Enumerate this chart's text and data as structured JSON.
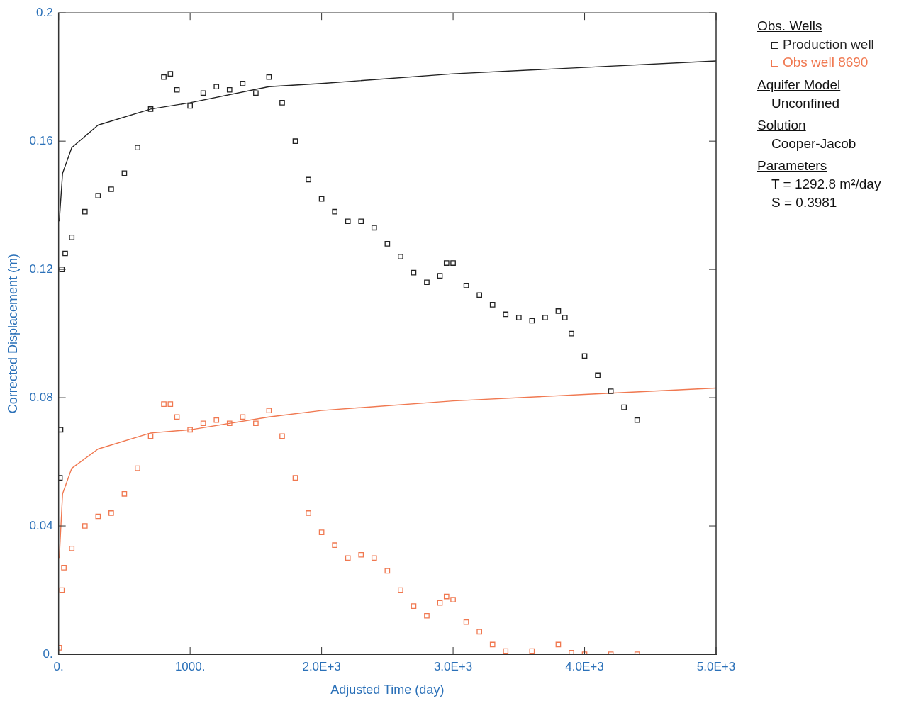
{
  "chart_data": {
    "type": "scatter",
    "xlabel": "Adjusted Time (day)",
    "ylabel": "Corrected Displacement (m)",
    "legend_title": "Obs. Wells",
    "legend": "right",
    "marker": "square",
    "grid": false,
    "xlim": [
      0,
      5000
    ],
    "xticks": [
      {
        "value": 0,
        "label": "0."
      },
      {
        "value": 1000,
        "label": "1000."
      },
      {
        "value": 2000,
        "label": "2.0E+3"
      },
      {
        "value": 3000,
        "label": "3.0E+3"
      },
      {
        "value": 4000,
        "label": "4.0E+3"
      },
      {
        "value": 5000,
        "label": "5.0E+3"
      }
    ],
    "ylim": [
      0,
      0.2
    ],
    "yticks": [
      {
        "value": 0,
        "label": "0."
      },
      0.04,
      0.08,
      0.12,
      0.16,
      0.2
    ],
    "annotations": [
      "Aquifer Model",
      "Unconfined",
      "Solution",
      "Cooper-Jacob",
      "Parameters",
      "T = 1292.8 m²/day",
      "S = 0.3981"
    ],
    "series": [
      {
        "name": "Production well",
        "color": "#222222",
        "x": [
          10,
          15,
          25,
          50,
          100,
          200,
          300,
          400,
          500,
          600,
          700,
          800,
          850,
          900,
          1000,
          1100,
          1200,
          1300,
          1400,
          1500,
          1600,
          1700,
          1800,
          1900,
          2000,
          2100,
          2200,
          2300,
          2400,
          2500,
          2600,
          2700,
          2800,
          2900,
          2950,
          3000,
          3100,
          3200,
          3300,
          3400,
          3500,
          3600,
          3700,
          3800,
          3850,
          3900,
          4000,
          4100,
          4200,
          4300,
          4400
        ],
        "values": [
          0.055,
          0.07,
          0.12,
          0.125,
          0.13,
          0.138,
          0.143,
          0.145,
          0.15,
          0.158,
          0.17,
          0.18,
          0.181,
          0.176,
          0.171,
          0.175,
          0.177,
          0.176,
          0.178,
          0.175,
          0.18,
          0.172,
          0.16,
          0.148,
          0.142,
          0.138,
          0.135,
          0.135,
          0.133,
          0.128,
          0.124,
          0.119,
          0.116,
          0.118,
          0.122,
          0.122,
          0.115,
          0.112,
          0.109,
          0.106,
          0.105,
          0.104,
          0.105,
          0.107,
          0.105,
          0.1,
          0.093,
          0.087,
          0.082,
          0.077,
          0.073
        ]
      },
      {
        "name": "Obs well 8690",
        "color": "#f07850",
        "x": [
          5,
          25,
          40,
          100,
          200,
          300,
          400,
          500,
          600,
          700,
          800,
          850,
          900,
          1000,
          1100,
          1200,
          1300,
          1400,
          1500,
          1600,
          1700,
          1800,
          1900,
          2000,
          2100,
          2200,
          2300,
          2400,
          2500,
          2600,
          2700,
          2800,
          2900,
          2950,
          3000,
          3100,
          3200,
          3300,
          3400,
          3600,
          3800,
          3900,
          4000,
          4200,
          4400
        ],
        "values": [
          0.002,
          0.02,
          0.027,
          0.033,
          0.04,
          0.043,
          0.044,
          0.05,
          0.058,
          0.068,
          0.078,
          0.078,
          0.074,
          0.07,
          0.072,
          0.073,
          0.072,
          0.074,
          0.072,
          0.076,
          0.068,
          0.055,
          0.044,
          0.038,
          0.034,
          0.03,
          0.031,
          0.03,
          0.026,
          0.02,
          0.015,
          0.012,
          0.016,
          0.018,
          0.017,
          0.01,
          0.007,
          0.003,
          0.001,
          0.001,
          0.003,
          0.0005,
          0,
          0,
          0
        ]
      },
      {
        "type": "line",
        "marker": "none",
        "color": "#222222",
        "x": [
          5,
          30,
          100,
          300,
          700,
          1000,
          1600,
          2000,
          3000,
          4000,
          5000
        ],
        "values": [
          0.135,
          0.15,
          0.158,
          0.165,
          0.17,
          0.172,
          0.177,
          0.178,
          0.181,
          0.183,
          0.185
        ]
      },
      {
        "type": "line",
        "marker": "none",
        "color": "#f07850",
        "x": [
          5,
          30,
          100,
          300,
          700,
          1000,
          1600,
          2000,
          3000,
          4000,
          5000
        ],
        "values": [
          0.03,
          0.05,
          0.058,
          0.064,
          0.069,
          0.07,
          0.074,
          0.076,
          0.079,
          0.081,
          0.083
        ]
      }
    ]
  }
}
